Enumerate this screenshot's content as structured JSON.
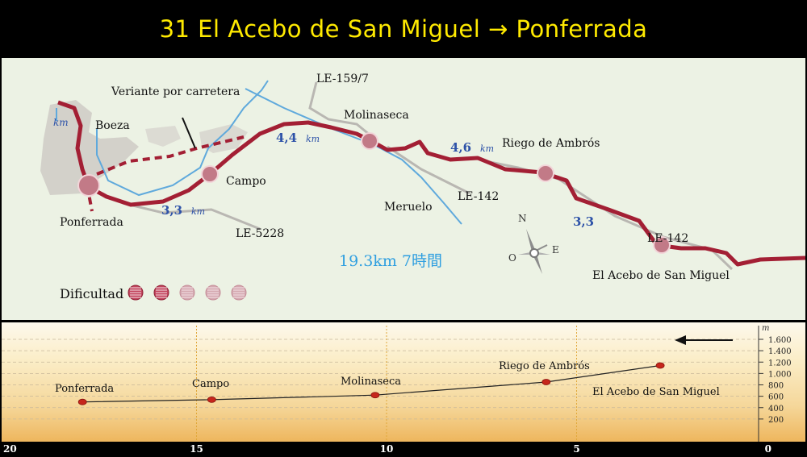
{
  "title": "31 El Acebo de San Miguel → Ponferrada",
  "map": {
    "places": {
      "boeza": "Boeza",
      "km_fragment": "km",
      "variante": "Veriante por carretera",
      "le159": "LE-159/7",
      "molinaseca": "Molinaseca",
      "riego": "Riego de Ambrós",
      "campo": "Campo",
      "meruelo": "Meruelo",
      "le142a": "LE-142",
      "le142b": "LE-142",
      "le5228": "LE-5228",
      "ponferrada": "Ponferrada",
      "acebo": "El Acebo de San Miguel"
    },
    "distances": {
      "d1_num": "4,4",
      "d1_unit": "km",
      "d2_num": "4,6",
      "d2_unit": "km",
      "d3_num": "3,3",
      "d3_unit": "km",
      "d4_num": "3,3"
    },
    "summary": "19.3km 7時間",
    "difficulty_label": "Dificultad",
    "difficulty_level": 2,
    "difficulty_max": 5,
    "compass": {
      "n": "N",
      "o": "O",
      "e": "E"
    },
    "colors": {
      "route": "#a31f34",
      "river": "#5fa9dc",
      "distance": "#2d52a8",
      "summary": "#2f9fe0"
    }
  },
  "profile": {
    "unit": "m",
    "elevation_ticks": [
      "200",
      "400",
      "600",
      "800",
      "1.000",
      "1.200",
      "1.400",
      "1.600"
    ],
    "km_ticks": [
      "20",
      "15",
      "10",
      "5",
      "0"
    ],
    "labels": {
      "ponferrada": "Ponferrada",
      "campo": "Campo",
      "molinaseca": "Molinaseca",
      "riego": "Riego de Ambrós",
      "acebo": "El Acebo de San Miguel"
    },
    "points": [
      {
        "km": 18.0,
        "elev": 500
      },
      {
        "km": 14.6,
        "elev": 540
      },
      {
        "km": 10.3,
        "elev": 620
      },
      {
        "km": 5.8,
        "elev": 850
      },
      {
        "km": 2.8,
        "elev": 1140
      }
    ]
  }
}
